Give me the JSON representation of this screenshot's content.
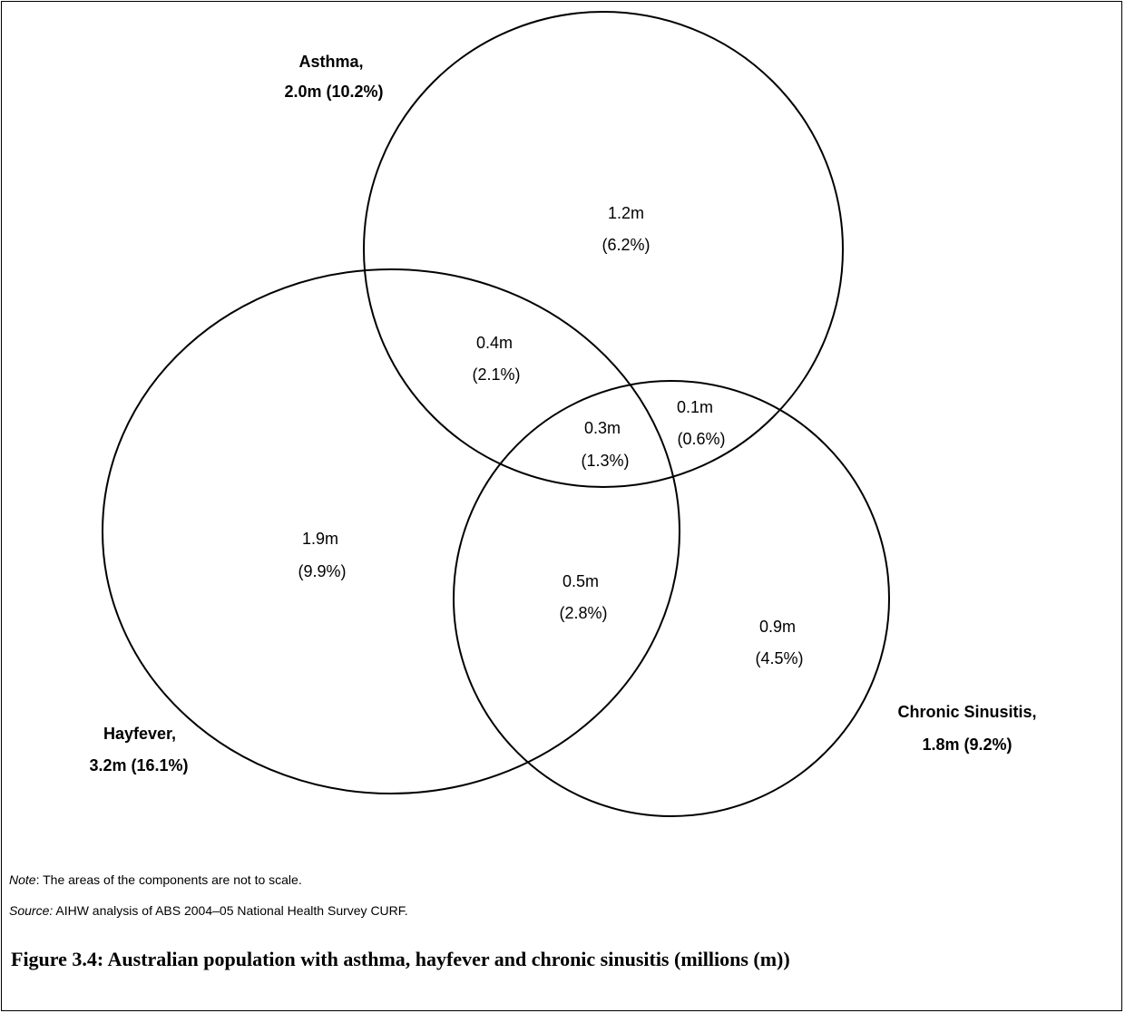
{
  "sets": [
    {
      "key": "asthma",
      "name": "Asthma,",
      "value": "2.0m (10.2%)"
    },
    {
      "key": "hayfever",
      "name": "Hayfever,",
      "value": "3.2m (16.1%)"
    },
    {
      "key": "sinusitis",
      "name": "Chronic Sinusitis,",
      "value": "1.8m (9.2%)"
    }
  ],
  "regions": {
    "asthma_only": {
      "value": "1.2m",
      "pct": "(6.2%)"
    },
    "asthma_hayfever": {
      "value": "0.4m",
      "pct": "(2.1%)"
    },
    "all_three": {
      "value": "0.3m",
      "pct": "(1.3%)"
    },
    "asthma_sinusitis": {
      "value": "0.1m",
      "pct": "(0.6%)"
    },
    "hayfever_only": {
      "value": "1.9m",
      "pct": "(9.9%)"
    },
    "hayfever_sinusitis": {
      "value": "0.5m",
      "pct": "(2.8%)"
    },
    "sinusitis_only": {
      "value": "0.9m",
      "pct": "(4.5%)"
    }
  },
  "note": {
    "label": "Note",
    "text": ": The areas of the components are not to scale."
  },
  "source": {
    "label": "Source:",
    "text": " AIHW analysis of ABS 2004–05 National Health Survey CURF."
  },
  "caption": "Figure 3.4: Australian population with asthma, hayfever and chronic sinusitis (millions (m))"
}
